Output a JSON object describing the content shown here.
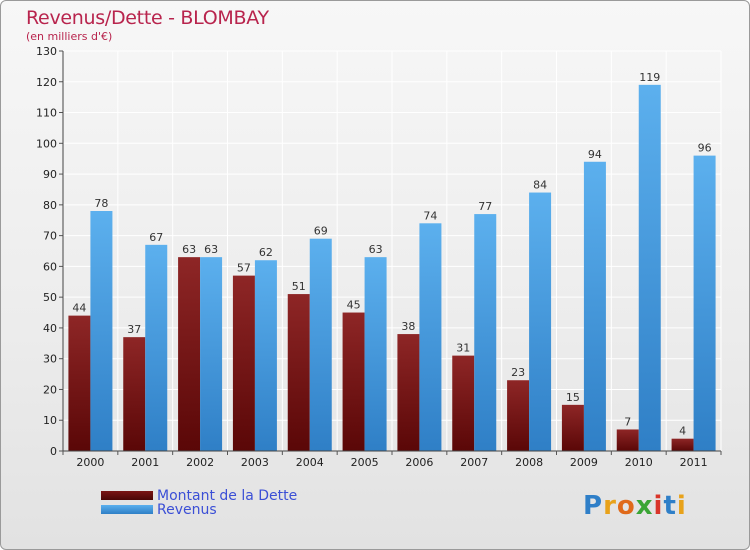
{
  "header": {
    "title": "Revenus/Dette - BLOMBAY",
    "subtitle": "(en milliers d'€)"
  },
  "legend": {
    "debt_label": "Montant de la Dette",
    "revenue_label": "Revenus"
  },
  "logo": {
    "text": "Proxiti",
    "letters": [
      {
        "ch": "P",
        "color": "#2f7fc8"
      },
      {
        "ch": "r",
        "color": "#e8a21a"
      },
      {
        "ch": "o",
        "color": "#e06a1a"
      },
      {
        "ch": "x",
        "color": "#3aa535"
      },
      {
        "ch": "i",
        "color": "#d9352a"
      },
      {
        "ch": "t",
        "color": "#2f7fc8"
      },
      {
        "ch": "i",
        "color": "#e8a21a"
      }
    ]
  },
  "colors": {
    "debt": "#8b1a1a",
    "revenue": "#4aa3e6",
    "title": "#b8244d",
    "legend_text": "#3b4fd6"
  },
  "chart_data": {
    "type": "bar",
    "title": "Revenus/Dette - BLOMBAY",
    "subtitle": "(en milliers d'€)",
    "categories": [
      "2000",
      "2001",
      "2002",
      "2003",
      "2004",
      "2005",
      "2006",
      "2007",
      "2008",
      "2009",
      "2010",
      "2011"
    ],
    "series": [
      {
        "name": "Montant de la Dette",
        "values": [
          44,
          37,
          63,
          57,
          51,
          45,
          38,
          31,
          23,
          15,
          7,
          4
        ]
      },
      {
        "name": "Revenus",
        "values": [
          78,
          67,
          63,
          62,
          69,
          63,
          74,
          77,
          84,
          94,
          119,
          96
        ]
      }
    ],
    "yticks": [
      0,
      10,
      20,
      30,
      40,
      50,
      60,
      70,
      80,
      90,
      100,
      110,
      120,
      130
    ],
    "ylim": [
      0,
      130
    ],
    "grid": true,
    "legend_position": "bottom-left"
  }
}
